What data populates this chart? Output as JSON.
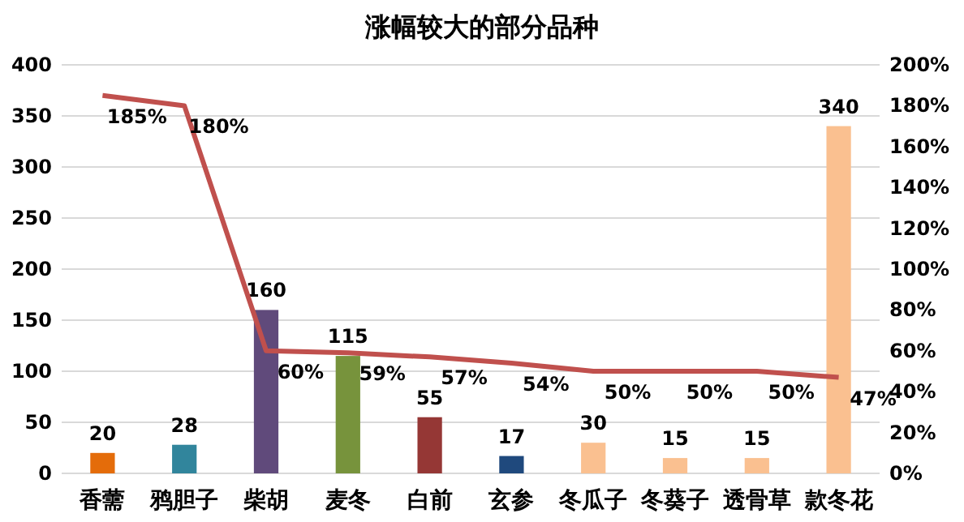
{
  "chart_data": {
    "type": "bar",
    "title": "涨幅较大的部分品种",
    "categories": [
      "香薷",
      "鸦胆子",
      "柴胡",
      "麦冬",
      "白前",
      "玄参",
      "冬瓜子",
      "冬葵子",
      "透骨草",
      "款冬花"
    ],
    "series": [
      {
        "colors": [
          "#e46c0a",
          "#31859c",
          "#604a7b",
          "#77933c",
          "#953735",
          "#1f497d",
          "#fac090",
          "#fac090",
          "#fac090",
          "#fac090"
        ],
        "values": [
          20,
          28,
          160,
          115,
          55,
          17,
          30,
          15,
          15,
          340
        ],
        "value_labels": [
          "20",
          "28",
          "160",
          "115",
          "55",
          "17",
          "30",
          "15",
          "15",
          "340"
        ]
      },
      {
        "type": "line",
        "axis": "y2",
        "color": "#c0504d",
        "values": [
          185,
          180,
          60,
          59,
          57,
          54,
          50,
          50,
          50,
          47
        ],
        "value_labels": [
          "185%",
          "180%",
          "60%",
          "59%",
          "57%",
          "54%",
          "50%",
          "50%",
          "50%",
          "47%"
        ]
      }
    ],
    "ylim": [
      0,
      400
    ],
    "yticks": [
      0,
      50,
      100,
      150,
      200,
      250,
      300,
      350,
      400
    ],
    "y2lim": [
      0,
      200
    ],
    "y2ticks": [
      {
        "value": 0,
        "label": "0%"
      },
      {
        "value": 20,
        "label": "20%"
      },
      {
        "value": 40,
        "label": "40%"
      },
      {
        "value": 60,
        "label": "60%"
      },
      {
        "value": 80,
        "label": "80%"
      },
      {
        "value": 100,
        "label": "100%"
      },
      {
        "value": 120,
        "label": "120%"
      },
      {
        "value": 140,
        "label": "140%"
      },
      {
        "value": 160,
        "label": "160%"
      },
      {
        "value": 180,
        "label": "180%"
      },
      {
        "value": 200,
        "label": "200%"
      }
    ],
    "grid": "y",
    "marker": "none",
    "line_style": "solid"
  }
}
